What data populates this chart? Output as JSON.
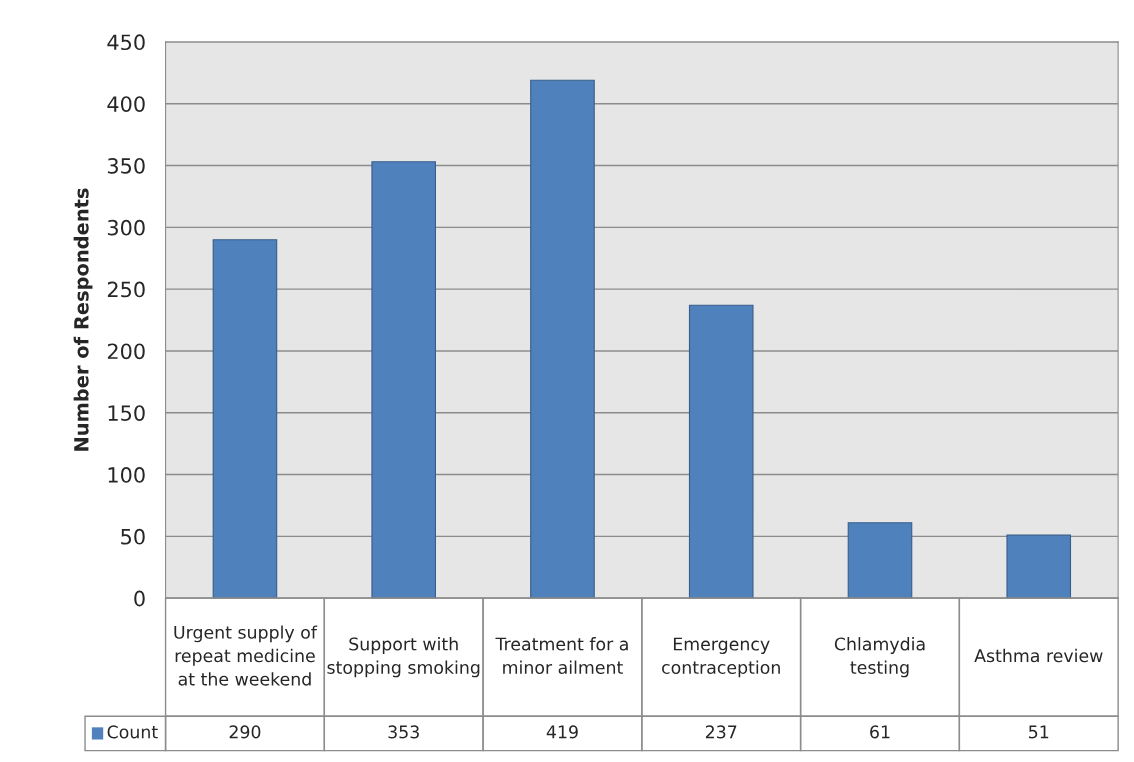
{
  "chart_data": {
    "type": "bar",
    "ylabel": "Number of Respondents",
    "categories": [
      "Urgent supply of repeat medicine at the weekend",
      "Support with stopping smoking",
      "Treatment for a minor ailment",
      "Emergency contraception",
      "Chlamydia testing",
      "Asthma review"
    ],
    "series": [
      {
        "name": "Count",
        "color": "#4f81bd",
        "values": [
          290,
          353,
          419,
          237,
          61,
          51
        ]
      }
    ],
    "ylim": [
      0,
      450
    ],
    "yticks": [
      0,
      50,
      100,
      150,
      200,
      250,
      300,
      350,
      400,
      450
    ],
    "grid": "y",
    "data_labels": true,
    "legend": "bottom"
  }
}
